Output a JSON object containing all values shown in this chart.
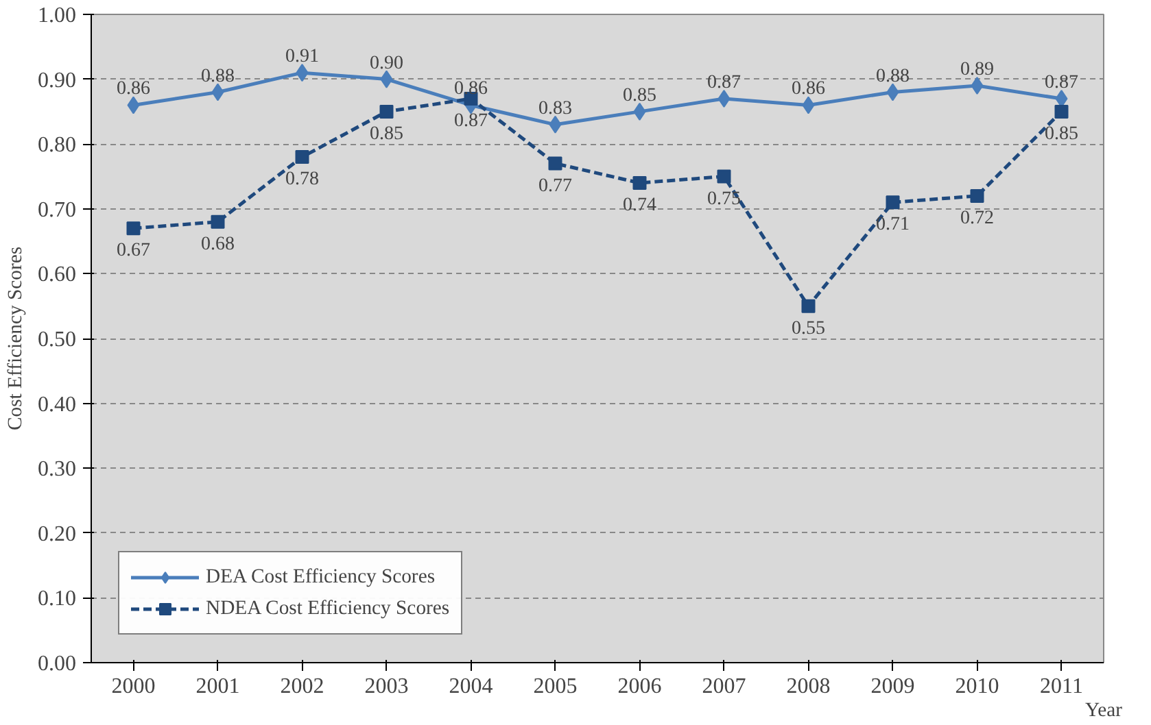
{
  "chart_data": {
    "type": "line",
    "ylabel": "Cost Efficiency Scores",
    "xlabel": "Year",
    "categories": [
      "2000",
      "2001",
      "2002",
      "2003",
      "2004",
      "2005",
      "2006",
      "2007",
      "2008",
      "2009",
      "2010",
      "2011"
    ],
    "series": [
      {
        "name": "DEA Cost Efficiency Scores",
        "color": "#4a7ebb",
        "marker": "diamond",
        "line_style": "solid",
        "values": [
          0.86,
          0.88,
          0.91,
          0.9,
          0.86,
          0.83,
          0.85,
          0.87,
          0.86,
          0.88,
          0.89,
          0.87
        ],
        "value_labels": [
          "0.86",
          "0.88",
          "0.91",
          "0.90",
          "0.86",
          "0.83",
          "0.85",
          "0.87",
          "0.86",
          "0.88",
          "0.89",
          "0.87"
        ]
      },
      {
        "name": "NDEA Cost Efficiency Scores",
        "color": "#1f497d",
        "marker": "square",
        "line_style": "dashed",
        "values": [
          0.67,
          0.68,
          0.78,
          0.85,
          0.87,
          0.77,
          0.74,
          0.75,
          0.55,
          0.71,
          0.72,
          0.85
        ],
        "value_labels": [
          "0.67",
          "0.68",
          "0.78",
          "0.85",
          "0.87",
          "0.77",
          "0.74",
          "0.75",
          "0.55",
          "0.71",
          "0.72",
          "0.85"
        ]
      }
    ],
    "ylim": [
      0,
      1
    ],
    "yticks": [
      {
        "value": 0,
        "label": "0.00"
      },
      {
        "value": 0.1,
        "label": "0.10"
      },
      {
        "value": 0.2,
        "label": "0.20"
      },
      {
        "value": 0.3,
        "label": "0.30"
      },
      {
        "value": 0.4,
        "label": "0.40"
      },
      {
        "value": 0.5,
        "label": "0.50"
      },
      {
        "value": 0.6,
        "label": "0.60"
      },
      {
        "value": 0.7,
        "label": "0.70"
      },
      {
        "value": 0.8,
        "label": "0.80"
      },
      {
        "value": 0.9,
        "label": "0.90"
      },
      {
        "value": 1,
        "label": "1.00"
      }
    ],
    "grid": "y",
    "legend": "bottom left"
  }
}
